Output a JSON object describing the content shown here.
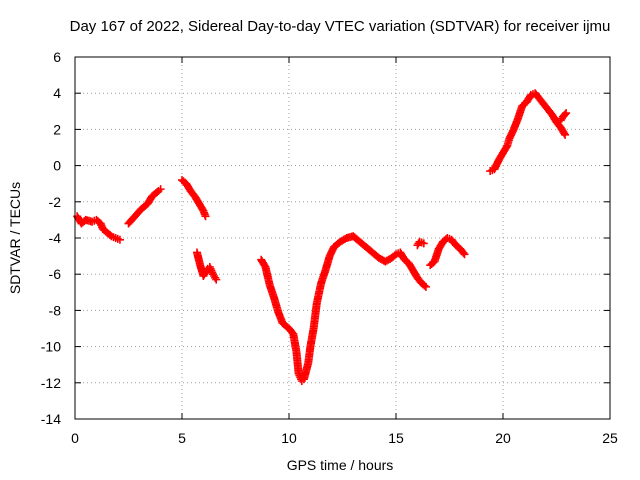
{
  "chart_data": {
    "type": "scatter",
    "title": "Day 167 of 2022, Sidereal Day-to-day VTEC variation (SDTVAR) for receiver ijmu",
    "xlabel": "GPS time / hours",
    "ylabel": "SDTVAR / TECUs",
    "xlim": [
      0,
      25
    ],
    "ylim": [
      -14,
      6
    ],
    "x_ticks": [
      0,
      5,
      10,
      15,
      20,
      25
    ],
    "y_ticks": [
      -14,
      -12,
      -10,
      -8,
      -6,
      -4,
      -2,
      0,
      2,
      4,
      6
    ],
    "grid": true,
    "legend": "none",
    "marker": "plus",
    "color": "#ff0000",
    "series": [
      {
        "segments": [
          [
            [
              0.1,
              -2.8
            ],
            [
              0.3,
              -3.2
            ],
            [
              0.5,
              -3.0
            ],
            [
              0.8,
              -3.1
            ],
            [
              1.0,
              -3.0
            ],
            [
              1.2,
              -3.2
            ],
            [
              1.3,
              -3.5
            ],
            [
              1.5,
              -3.7
            ],
            [
              1.7,
              -3.9
            ],
            [
              1.9,
              -4.0
            ],
            [
              2.1,
              -4.1
            ]
          ],
          [
            [
              2.5,
              -3.2
            ],
            [
              2.8,
              -2.8
            ],
            [
              3.1,
              -2.4
            ],
            [
              3.4,
              -2.1
            ],
            [
              3.6,
              -1.7
            ],
            [
              3.9,
              -1.4
            ],
            [
              4.0,
              -1.3
            ]
          ],
          [
            [
              5.0,
              -0.8
            ],
            [
              5.2,
              -1.0
            ],
            [
              5.4,
              -1.4
            ],
            [
              5.6,
              -1.7
            ],
            [
              5.8,
              -2.1
            ],
            [
              6.0,
              -2.5
            ],
            [
              6.1,
              -2.8
            ]
          ],
          [
            [
              5.7,
              -4.8
            ],
            [
              5.85,
              -5.5
            ],
            [
              6.0,
              -6.1
            ],
            [
              6.2,
              -5.7
            ],
            [
              6.3,
              -5.6
            ],
            [
              6.45,
              -6.0
            ],
            [
              6.6,
              -6.3
            ]
          ],
          [
            [
              8.7,
              -5.2
            ],
            [
              8.9,
              -5.6
            ],
            [
              9.1,
              -6.6
            ],
            [
              9.3,
              -7.3
            ],
            [
              9.5,
              -8.1
            ],
            [
              9.7,
              -8.7
            ],
            [
              10.0,
              -9.0
            ],
            [
              10.2,
              -9.3
            ],
            [
              10.35,
              -10.3
            ],
            [
              10.45,
              -11.5
            ],
            [
              10.6,
              -11.9
            ],
            [
              10.7,
              -11.8
            ],
            [
              10.9,
              -10.9
            ],
            [
              11.0,
              -10.0
            ],
            [
              11.15,
              -9.0
            ],
            [
              11.3,
              -7.6
            ],
            [
              11.5,
              -6.5
            ],
            [
              11.7,
              -5.8
            ],
            [
              11.9,
              -5.0
            ],
            [
              12.1,
              -4.5
            ],
            [
              12.4,
              -4.2
            ],
            [
              12.7,
              -4.0
            ],
            [
              13.0,
              -3.9
            ],
            [
              13.3,
              -4.2
            ],
            [
              13.6,
              -4.5
            ],
            [
              13.9,
              -4.8
            ],
            [
              14.2,
              -5.1
            ],
            [
              14.5,
              -5.3
            ],
            [
              14.8,
              -5.1
            ],
            [
              15.0,
              -4.9
            ],
            [
              15.2,
              -4.8
            ],
            [
              15.4,
              -5.2
            ],
            [
              15.6,
              -5.4
            ],
            [
              15.8,
              -5.8
            ],
            [
              16.0,
              -6.2
            ],
            [
              16.2,
              -6.5
            ],
            [
              16.4,
              -6.7
            ]
          ],
          [
            [
              16.0,
              -4.4
            ],
            [
              16.1,
              -4.2
            ],
            [
              16.3,
              -4.3
            ]
          ],
          [
            [
              16.6,
              -5.5
            ],
            [
              16.8,
              -5.3
            ],
            [
              17.0,
              -4.6
            ],
            [
              17.2,
              -4.2
            ],
            [
              17.4,
              -4.0
            ],
            [
              17.6,
              -4.1
            ],
            [
              17.8,
              -4.4
            ],
            [
              18.0,
              -4.6
            ],
            [
              18.2,
              -4.9
            ]
          ],
          [
            [
              19.4,
              -0.3
            ],
            [
              19.6,
              -0.2
            ],
            [
              19.8,
              0.3
            ],
            [
              20.0,
              0.7
            ],
            [
              20.2,
              1.1
            ],
            [
              20.3,
              1.5
            ],
            [
              20.5,
              2.0
            ],
            [
              20.7,
              2.6
            ],
            [
              20.9,
              3.3
            ],
            [
              21.1,
              3.5
            ],
            [
              21.3,
              3.9
            ],
            [
              21.5,
              4.0
            ],
            [
              21.7,
              3.7
            ],
            [
              21.9,
              3.4
            ],
            [
              22.1,
              3.1
            ],
            [
              22.3,
              2.8
            ],
            [
              22.5,
              2.4
            ],
            [
              22.7,
              2.1
            ],
            [
              22.9,
              1.7
            ]
          ],
          [
            [
              22.7,
              2.5
            ],
            [
              22.8,
              2.7
            ],
            [
              22.95,
              2.9
            ]
          ]
        ]
      }
    ]
  }
}
